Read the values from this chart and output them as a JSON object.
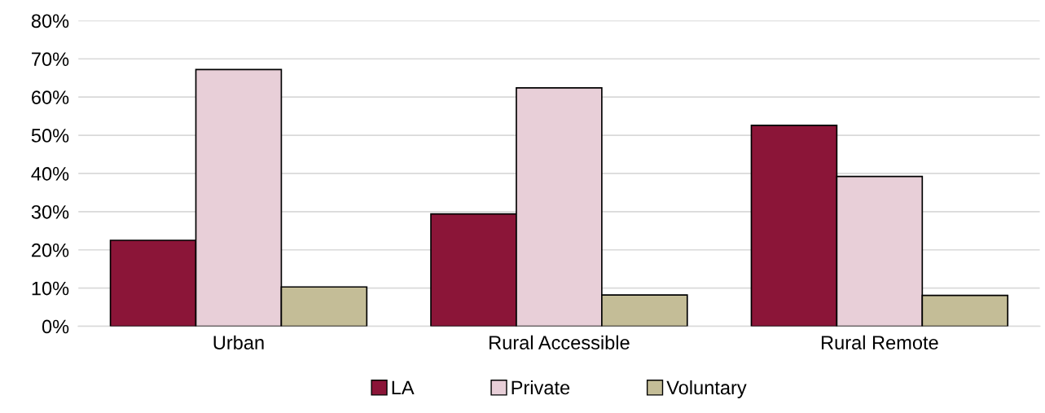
{
  "chart_data": {
    "type": "bar",
    "categories": [
      "Urban",
      "Rural Accessible",
      "Rural Remote"
    ],
    "series": [
      {
        "name": "LA",
        "color": "#8b1538",
        "values": [
          22.5,
          29.4,
          52.6
        ]
      },
      {
        "name": "Private",
        "color": "#e8cfd8",
        "values": [
          67.2,
          62.4,
          39.2
        ]
      },
      {
        "name": "Voluntary",
        "color": "#c4bd97",
        "values": [
          10.3,
          8.2,
          8.1
        ]
      }
    ],
    "ylim": [
      0,
      80
    ],
    "yticks": [
      {
        "value": 0,
        "label": "0%"
      },
      {
        "value": 10,
        "label": "10%"
      },
      {
        "value": 20,
        "label": "20%"
      },
      {
        "value": 30,
        "label": "30%"
      },
      {
        "value": 40,
        "label": "40%"
      },
      {
        "value": 50,
        "label": "50%"
      },
      {
        "value": 60,
        "label": "60%"
      },
      {
        "value": 70,
        "label": "70%"
      },
      {
        "value": 80,
        "label": "80%"
      }
    ],
    "grid": "y",
    "legend": "bottom"
  }
}
